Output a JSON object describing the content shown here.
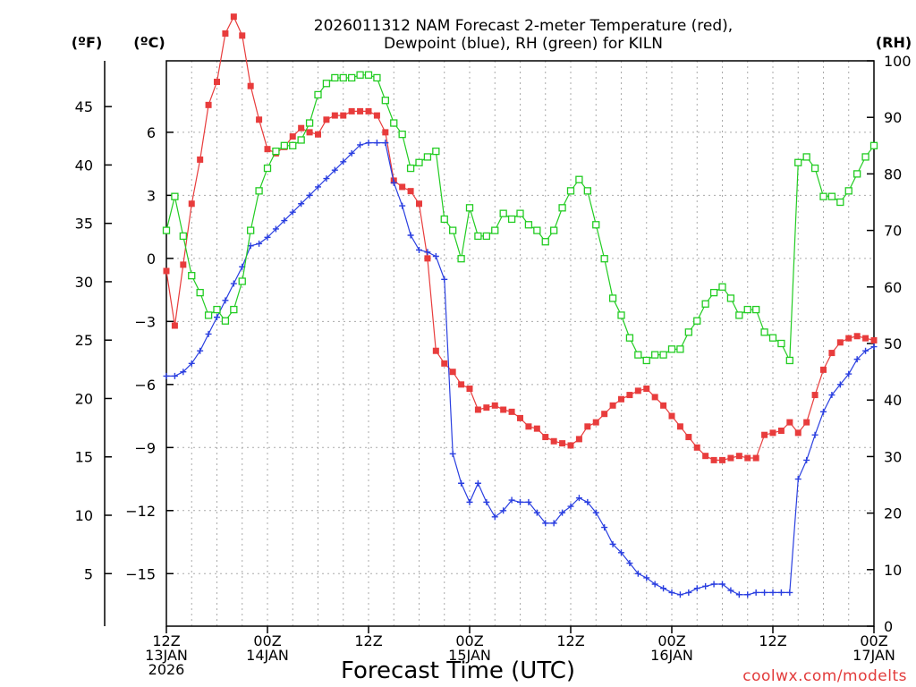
{
  "chart_data": {
    "type": "line",
    "title_lines": [
      "2026011312 NAM Forecast 2-meter Temperature (red),",
      "Dewpoint (blue), RH (green) for KILN"
    ],
    "xlabel": "Forecast Time (UTC)",
    "credit": "coolwx.com/modelts",
    "units": {
      "fahrenheit": "(ºF)",
      "celsius": "(ºC)",
      "rh": "(RH)"
    },
    "x_hours_range": [
      0,
      84
    ],
    "x_ticks": [
      {
        "hour": 0,
        "lines": [
          "12Z",
          "13JAN",
          "2026"
        ]
      },
      {
        "hour": 12,
        "lines": [
          "00Z",
          "14JAN"
        ]
      },
      {
        "hour": 24,
        "lines": [
          "12Z"
        ]
      },
      {
        "hour": 36,
        "lines": [
          "00Z",
          "15JAN"
        ]
      },
      {
        "hour": 48,
        "lines": [
          "12Z"
        ]
      },
      {
        "hour": 60,
        "lines": [
          "00Z",
          "16JAN"
        ]
      },
      {
        "hour": 72,
        "lines": [
          "12Z"
        ]
      },
      {
        "hour": 84,
        "lines": [
          "00Z",
          "17JAN"
        ]
      }
    ],
    "celsius_axis": {
      "range": [
        -17.5,
        9.4
      ],
      "ticks": [
        "6",
        "3",
        "0",
        "−3",
        "−6",
        "−9",
        "−12",
        "−15"
      ],
      "tick_values": [
        6,
        3,
        0,
        -3,
        -6,
        -9,
        -12,
        -15
      ]
    },
    "fahrenheit_axis": {
      "ticks": [
        "45",
        "40",
        "35",
        "30",
        "25",
        "20",
        "15",
        "10",
        "5"
      ],
      "tick_values": [
        45,
        40,
        35,
        30,
        25,
        20,
        15,
        10,
        5
      ]
    },
    "rh_axis": {
      "range": [
        0,
        100
      ],
      "ticks": [
        "100",
        "90",
        "80",
        "70",
        "60",
        "50",
        "40",
        "30",
        "20",
        "10",
        "0"
      ],
      "tick_values": [
        100,
        90,
        80,
        70,
        60,
        50,
        40,
        30,
        20,
        10,
        0
      ]
    },
    "series": [
      {
        "name": "2-meter Temperature",
        "color": "#e83c3c",
        "marker": "filled-square",
        "axis": "celsius",
        "x": [
          0,
          1,
          2,
          3,
          4,
          5,
          6,
          7,
          8,
          9,
          10,
          11,
          12,
          13,
          14,
          15,
          16,
          17,
          18,
          19,
          20,
          21,
          22,
          23,
          24,
          25,
          26,
          27,
          28,
          29,
          30,
          31,
          32,
          33,
          34,
          35,
          36,
          37,
          38,
          39,
          40,
          41,
          42,
          43,
          44,
          45,
          46,
          47,
          48,
          49,
          50,
          51,
          52,
          53,
          54,
          55,
          56,
          57,
          58,
          59,
          60,
          61,
          62,
          63,
          64,
          65,
          66,
          67,
          68,
          69,
          70,
          71,
          72,
          73,
          74,
          75,
          76,
          77,
          78,
          79,
          80,
          81,
          82,
          83,
          84
        ],
        "values": [
          -0.6,
          -3.2,
          -0.3,
          2.6,
          4.7,
          7.3,
          8.4,
          10.7,
          11.5,
          10.6,
          8.2,
          6.6,
          5.2,
          5.0,
          5.3,
          5.8,
          6.2,
          6.0,
          5.9,
          6.6,
          6.8,
          6.8,
          7.0,
          7.0,
          7.0,
          6.8,
          6.0,
          3.7,
          3.4,
          3.2,
          2.6,
          0.0,
          -4.4,
          -5.0,
          -5.4,
          -6.0,
          -6.2,
          -7.2,
          -7.1,
          -7.0,
          -7.2,
          -7.3,
          -7.6,
          -8.0,
          -8.1,
          -8.5,
          -8.7,
          -8.8,
          -8.9,
          -8.6,
          -8.0,
          -7.8,
          -7.4,
          -7.0,
          -6.7,
          -6.5,
          -6.3,
          -6.2,
          -6.6,
          -7.0,
          -7.5,
          -8.0,
          -8.5,
          -9.0,
          -9.4,
          -9.6,
          -9.6,
          -9.5,
          -9.4,
          -9.5,
          -9.5,
          -8.4,
          -8.3,
          -8.2,
          -7.8,
          -8.3,
          -7.8,
          -6.5,
          -5.3,
          -4.5,
          -4.0,
          -3.8,
          -3.7,
          -3.8,
          -3.9
        ]
      },
      {
        "name": "Dewpoint",
        "color": "#2a3fe0",
        "marker": "plus",
        "axis": "celsius",
        "x": [
          0,
          1,
          2,
          3,
          4,
          5,
          6,
          7,
          8,
          9,
          10,
          11,
          12,
          13,
          14,
          15,
          16,
          17,
          18,
          19,
          20,
          21,
          22,
          23,
          24,
          25,
          26,
          27,
          28,
          29,
          30,
          31,
          32,
          33,
          34,
          35,
          36,
          37,
          38,
          39,
          40,
          41,
          42,
          43,
          44,
          45,
          46,
          47,
          48,
          49,
          50,
          51,
          52,
          53,
          54,
          55,
          56,
          57,
          58,
          59,
          60,
          61,
          62,
          63,
          64,
          65,
          66,
          67,
          68,
          69,
          70,
          71,
          72,
          73,
          74,
          75,
          76,
          77,
          78,
          79,
          80,
          81,
          82,
          83,
          84
        ],
        "values": [
          -5.6,
          -5.6,
          -5.4,
          -5.0,
          -4.4,
          -3.6,
          -2.8,
          -2.0,
          -1.2,
          -0.4,
          0.6,
          0.7,
          1.0,
          1.4,
          1.8,
          2.2,
          2.6,
          3.0,
          3.4,
          3.8,
          4.2,
          4.6,
          5.0,
          5.4,
          5.5,
          5.5,
          5.5,
          3.6,
          2.5,
          1.1,
          0.4,
          0.3,
          0.1,
          -1.0,
          -9.3,
          -10.7,
          -11.6,
          -10.7,
          -11.6,
          -12.3,
          -12.0,
          -11.5,
          -11.6,
          -11.6,
          -12.1,
          -12.6,
          -12.6,
          -12.1,
          -11.8,
          -11.4,
          -11.6,
          -12.1,
          -12.8,
          -13.6,
          -14.0,
          -14.5,
          -15.0,
          -15.2,
          -15.5,
          -15.7,
          -15.9,
          -16.0,
          -15.9,
          -15.7,
          -15.6,
          -15.5,
          -15.5,
          -15.8,
          -16.0,
          -16.0,
          -15.9,
          -15.9,
          -15.9,
          -15.9,
          -15.9,
          -10.5,
          -9.6,
          -8.4,
          -7.3,
          -6.5,
          -6.0,
          -5.5,
          -4.8,
          -4.4,
          -4.2
        ]
      },
      {
        "name": "RH",
        "color": "#22cc22",
        "marker": "open-square",
        "axis": "rh",
        "x": [
          0,
          1,
          2,
          3,
          4,
          5,
          6,
          7,
          8,
          9,
          10,
          11,
          12,
          13,
          14,
          15,
          16,
          17,
          18,
          19,
          20,
          21,
          22,
          23,
          24,
          25,
          26,
          27,
          28,
          29,
          30,
          31,
          32,
          33,
          34,
          35,
          36,
          37,
          38,
          39,
          40,
          41,
          42,
          43,
          44,
          45,
          46,
          47,
          48,
          49,
          50,
          51,
          52,
          53,
          54,
          55,
          56,
          57,
          58,
          59,
          60,
          61,
          62,
          63,
          64,
          65,
          66,
          67,
          68,
          69,
          70,
          71,
          72,
          73,
          74,
          75,
          76,
          77,
          78,
          79,
          80,
          81,
          82,
          83,
          84
        ],
        "values": [
          70.0,
          76.0,
          69.0,
          62.0,
          59.0,
          55.0,
          56.0,
          54.0,
          56.0,
          61.0,
          70.0,
          77.0,
          81.0,
          84.0,
          85.0,
          85.0,
          86.0,
          89.0,
          94.0,
          96.0,
          97.0,
          97.0,
          97.0,
          97.5,
          97.5,
          97.0,
          93.0,
          89.0,
          87.0,
          81.0,
          82.0,
          83.0,
          84.0,
          72.0,
          70.0,
          65.0,
          74.0,
          69.0,
          69.0,
          70.0,
          73.0,
          72.0,
          73.0,
          71.0,
          70.0,
          68.0,
          70.0,
          74.0,
          77.0,
          79.0,
          77.0,
          71.0,
          65.0,
          58.0,
          55.0,
          51.0,
          48.0,
          47.0,
          48.0,
          48.0,
          49.0,
          49.0,
          52.0,
          54.0,
          57.0,
          59.0,
          60.0,
          58.0,
          55.0,
          56.0,
          56.0,
          52.0,
          51.0,
          50.0,
          47.0,
          82.0,
          83.0,
          81.0,
          76.0,
          76.0,
          75.0,
          77.0,
          80.0,
          83.0,
          85.0
        ]
      }
    ]
  }
}
